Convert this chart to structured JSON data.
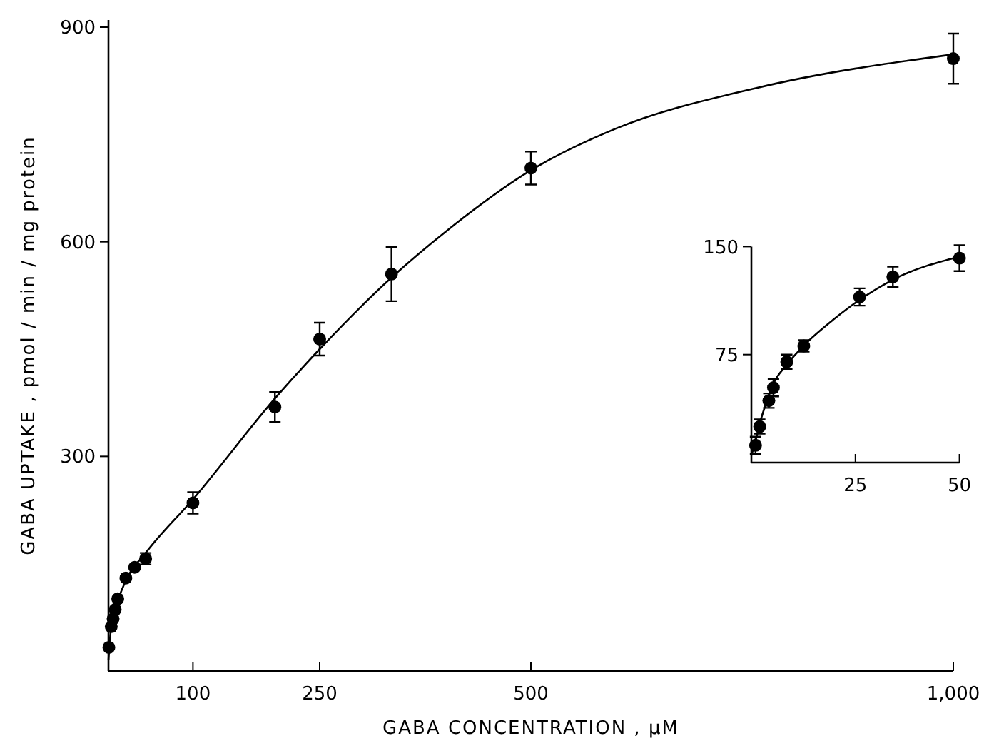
{
  "chart_data": [
    {
      "type": "scatter",
      "xlabel": "GABA CONCENTRATION , μM",
      "ylabel": "GABA UPTAKE , pmol / min / mg protein",
      "xlim": [
        0,
        1000
      ],
      "ylim": [
        0,
        910
      ],
      "xticks": [
        100,
        250,
        500,
        {
          "value": 1000,
          "label": "1,000"
        }
      ],
      "yticks": [
        300,
        600,
        900
      ],
      "grid": false,
      "marker": "circle",
      "series": [
        {
          "type": "scatter",
          "color": "#000000",
          "x": [
            0.5,
            3.3,
            5.5,
            8,
            11,
            20.6,
            31,
            44,
            100,
            197,
            250,
            335,
            500,
            1000
          ],
          "values": [
            33,
            62,
            73,
            86,
            101,
            130,
            145,
            157,
            235,
            369,
            464,
            555,
            703,
            856
          ],
          "errors": [
            null,
            null,
            null,
            null,
            null,
            null,
            null,
            8,
            15,
            21,
            23,
            38,
            23,
            35
          ]
        },
        {
          "type": "line",
          "color": "#000000",
          "line_style": "solid",
          "marker": "none",
          "x": [
            0,
            3,
            8,
            20,
            44,
            100,
            200,
            250,
            335,
            400,
            500,
            600,
            767,
            1000
          ],
          "values": [
            15,
            60,
            86,
            125,
            165,
            240,
            385,
            450,
            550,
            615,
            700,
            758,
            815,
            862
          ]
        }
      ]
    },
    {
      "type": "scatter",
      "xlim": [
        0,
        50
      ],
      "ylim": [
        0,
        150
      ],
      "xticks": [
        25,
        50
      ],
      "yticks": [
        75,
        150
      ],
      "grid": false,
      "marker": "circle",
      "series": [
        {
          "type": "scatter",
          "color": "#000000",
          "x": [
            1,
            2,
            4.2,
            5.3,
            8.5,
            12.6,
            26,
            34,
            50
          ],
          "values": [
            12,
            25,
            43,
            52,
            70,
            81,
            115,
            129,
            142
          ],
          "errors": [
            6,
            5,
            5,
            6,
            5,
            4,
            6,
            7,
            9
          ]
        },
        {
          "type": "line",
          "color": "#000000",
          "line_style": "solid",
          "marker": "none",
          "x": [
            0,
            1,
            2,
            4,
            5,
            8.5,
            12.5,
            20,
            26,
            34,
            50
          ],
          "values": [
            5,
            15,
            27,
            45,
            53,
            68,
            81,
            100,
            113,
            127,
            143
          ]
        }
      ]
    }
  ]
}
